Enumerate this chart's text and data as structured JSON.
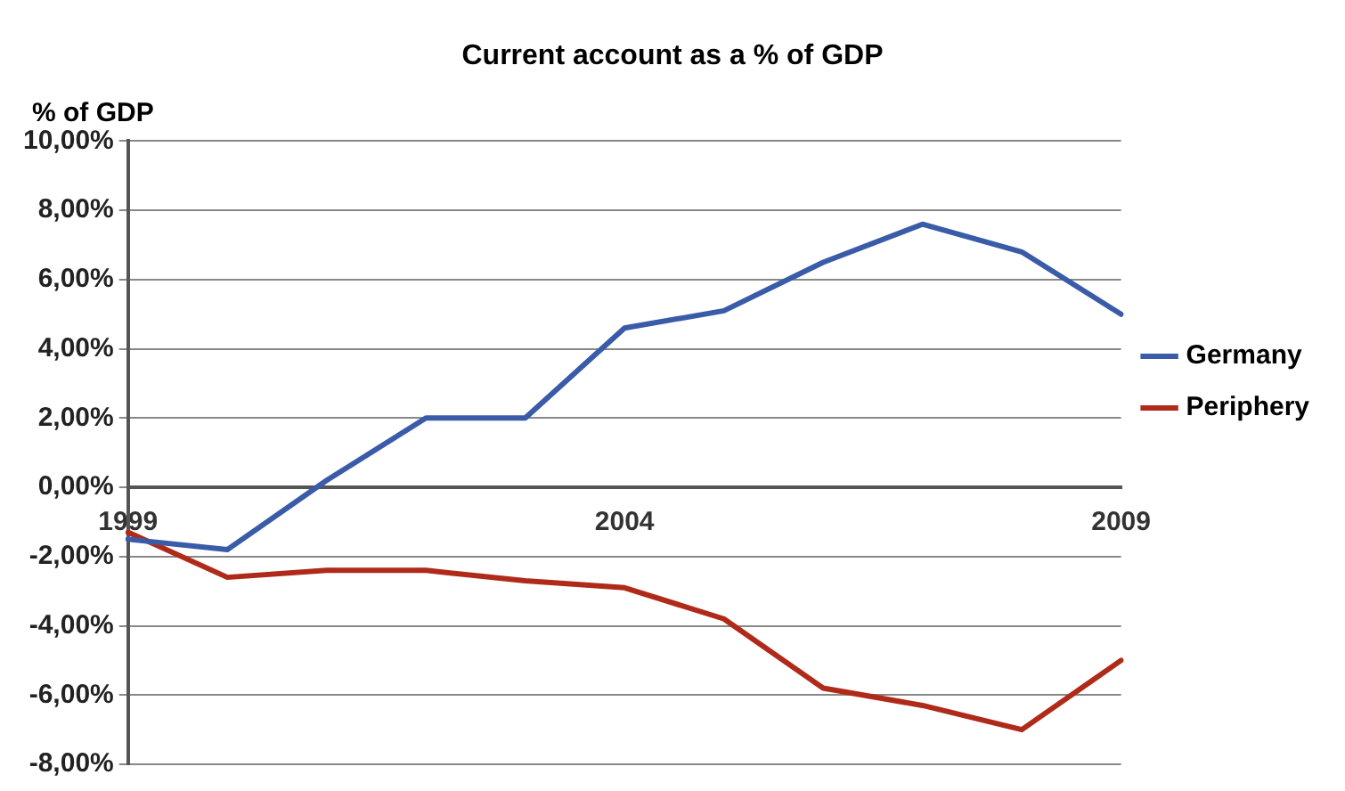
{
  "chart_data": {
    "type": "line",
    "title": "Current account as a % of GDP",
    "ylabel": "% of GDP",
    "categories": [
      "1999",
      null,
      null,
      null,
      null,
      "2004",
      null,
      null,
      null,
      null,
      "2009"
    ],
    "series": [
      {
        "name": "Germany",
        "color": "#3a5ba8",
        "values": [
          -1.5,
          -1.8,
          0.2,
          2.0,
          2.0,
          4.6,
          5.1,
          6.5,
          7.6,
          6.8,
          5.0
        ]
      },
      {
        "name": "Periphery",
        "color": "#b02a1a",
        "values": [
          -1.3,
          -2.6,
          -2.4,
          -2.4,
          -2.7,
          -2.9,
          -3.8,
          -5.8,
          -6.3,
          -7.0,
          -5.0
        ]
      }
    ],
    "ylim": [
      -8,
      10
    ],
    "yticks": [
      {
        "value": -8,
        "label": "-8,00%"
      },
      {
        "value": -6,
        "label": "-6,00%"
      },
      {
        "value": -4,
        "label": "-4,00%"
      },
      {
        "value": -2,
        "label": "-2,00%"
      },
      {
        "value": 0,
        "label": "0,00%"
      },
      {
        "value": 2,
        "label": "2,00%"
      },
      {
        "value": 4,
        "label": "4,00%"
      },
      {
        "value": 6,
        "label": "6,00%"
      },
      {
        "value": 8,
        "label": "8,00%"
      },
      {
        "value": 10,
        "label": "10,00%"
      }
    ],
    "grid": "y",
    "legend": "right",
    "marker": "none",
    "line_style": "solid"
  }
}
